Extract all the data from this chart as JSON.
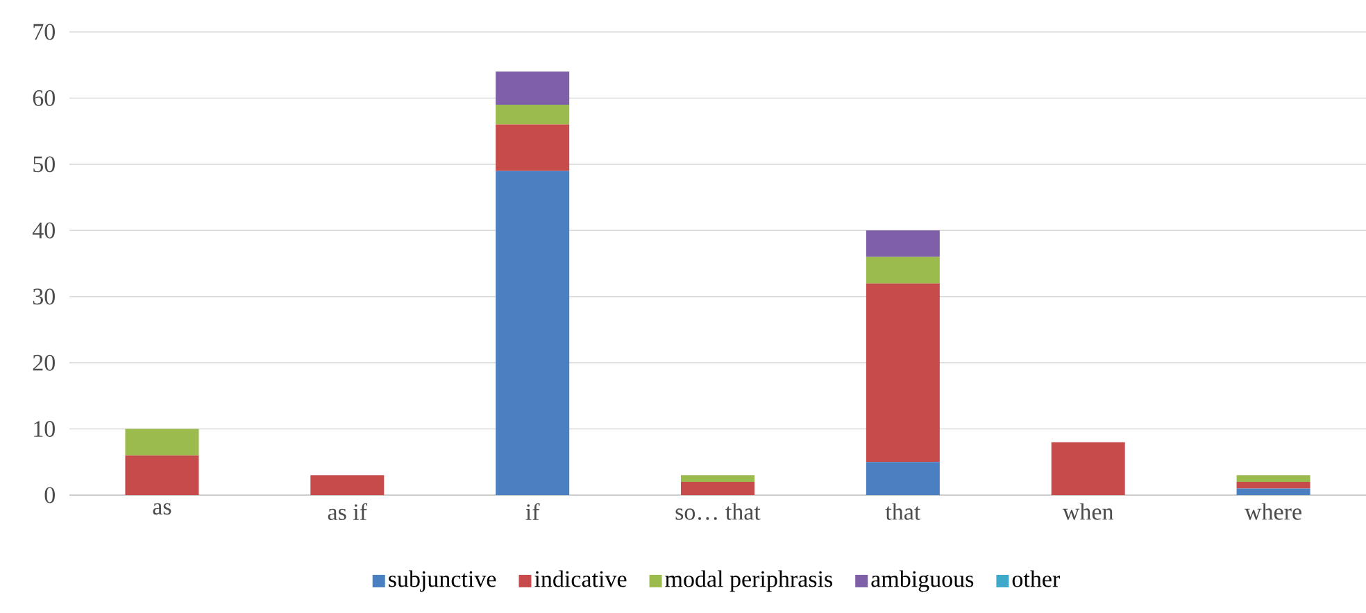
{
  "chart_data": {
    "type": "bar",
    "stacked": true,
    "categories": [
      "as",
      "as if",
      "if",
      "so… that",
      "that",
      "when",
      "where"
    ],
    "series": [
      {
        "name": "subjunctive",
        "color": "#4a7fc1",
        "values": [
          0,
          0,
          49,
          0,
          5,
          0,
          1
        ]
      },
      {
        "name": "indicative",
        "color": "#c84b4b",
        "values": [
          6,
          3,
          7,
          2,
          27,
          8,
          1
        ]
      },
      {
        "name": "modal periphrasis",
        "color": "#9bbb4c",
        "values": [
          4,
          0,
          3,
          1,
          4,
          0,
          1
        ]
      },
      {
        "name": "ambiguous",
        "color": "#7f5fa8",
        "values": [
          0,
          0,
          5,
          0,
          4,
          0,
          0
        ]
      },
      {
        "name": "other",
        "color": "#3fa9c9",
        "values": [
          0,
          0,
          0,
          0,
          0,
          0,
          0
        ]
      }
    ],
    "ylim": [
      0,
      70
    ],
    "yticks": [
      0,
      10,
      20,
      30,
      40,
      50,
      60,
      70
    ],
    "grid": "y",
    "legend": "bottom"
  }
}
